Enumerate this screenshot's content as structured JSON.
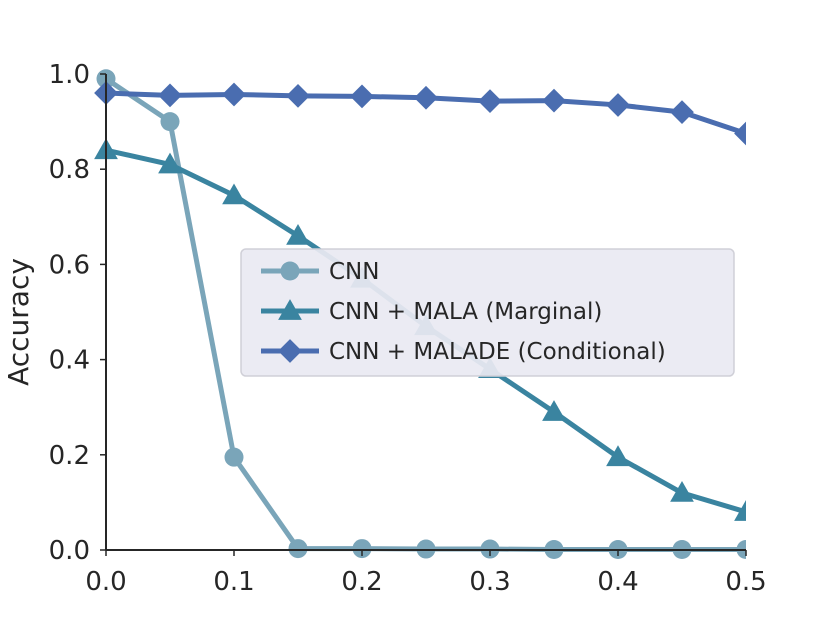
{
  "chart_data": {
    "type": "line",
    "title": "",
    "xlabel": "",
    "ylabel": "Accuracy",
    "xlim": [
      0.0,
      0.5
    ],
    "ylim": [
      0.0,
      1.0
    ],
    "xticks": [
      0.0,
      0.1,
      0.2,
      0.3,
      0.4,
      0.5
    ],
    "xtick_labels": [
      "0.0",
      "0.1",
      "0.2",
      "0.3",
      "0.4",
      "0.5"
    ],
    "yticks": [
      0.0,
      0.2,
      0.4,
      0.6,
      0.8,
      1.0
    ],
    "ytick_labels": [
      "0.0",
      "0.2",
      "0.4",
      "0.6",
      "0.8",
      "1.0"
    ],
    "grid": false,
    "legend_position": "center-right",
    "x": [
      0.0,
      0.05,
      0.1,
      0.15,
      0.2,
      0.25,
      0.3,
      0.35,
      0.4,
      0.45,
      0.5
    ],
    "series": [
      {
        "name": "CNN",
        "marker": "circle",
        "color": "#7aa5b9",
        "values": [
          0.99,
          0.9,
          0.195,
          0.003,
          0.003,
          0.002,
          0.002,
          0.001,
          0.001,
          0.001,
          0.001
        ]
      },
      {
        "name": "CNN + MALA (Marginal)",
        "marker": "triangle",
        "color": "#3a84a0",
        "values": [
          0.84,
          0.81,
          0.745,
          0.66,
          0.57,
          0.47,
          0.38,
          0.29,
          0.195,
          0.12,
          0.08
        ]
      },
      {
        "name": "CNN + MALADE (Conditional)",
        "marker": "diamond",
        "color": "#4a6db0",
        "values": [
          0.96,
          0.955,
          0.957,
          0.954,
          0.953,
          0.95,
          0.943,
          0.944,
          0.935,
          0.92,
          0.875
        ]
      }
    ]
  }
}
